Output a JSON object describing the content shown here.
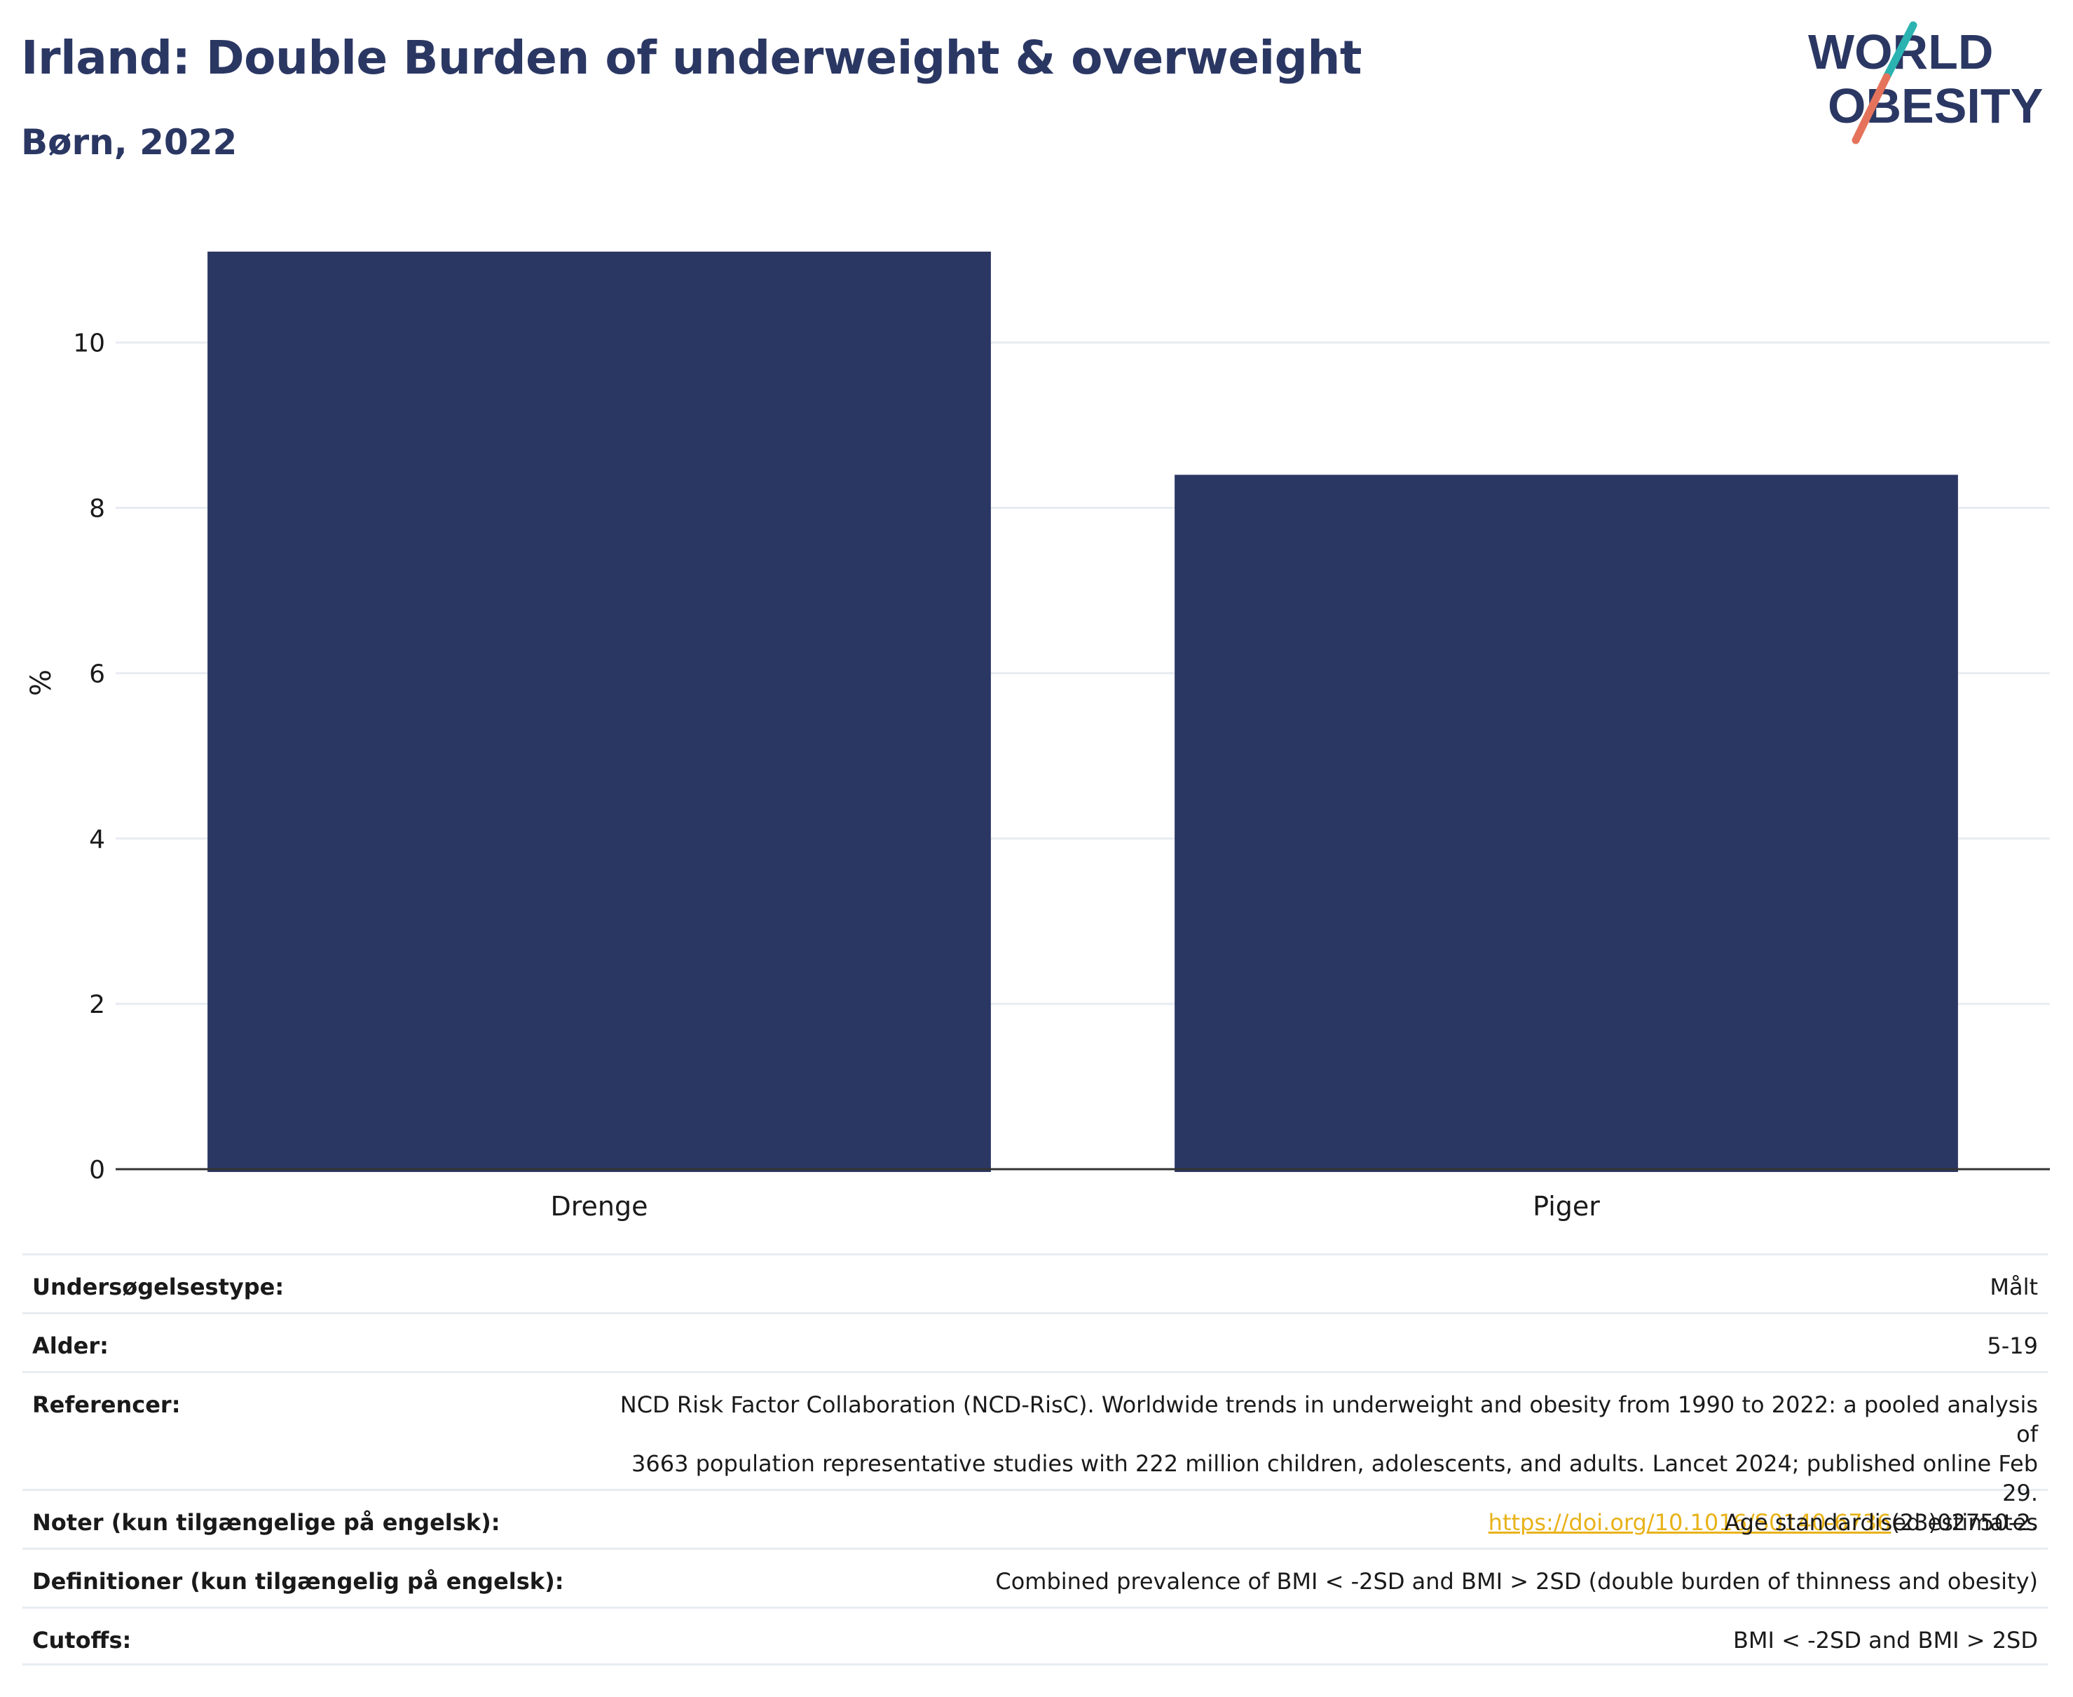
{
  "title": "Irland: Double Burden of underweight & overweight",
  "subtitle": "Børn, 2022",
  "logo": {
    "line1": "WORLD",
    "line2": "OBESITY",
    "colors": {
      "navy": "#2b3763",
      "teal": "#2ab3b1",
      "coral": "#e5735c"
    }
  },
  "colors": {
    "bar": "#2b3763",
    "grid": "#e8ecf2",
    "axis": "#333333",
    "link": "#e8b219"
  },
  "chart_data": {
    "type": "bar",
    "categories": [
      "Drenge",
      "Piger"
    ],
    "values": [
      11.1,
      8.4
    ],
    "title": "",
    "xlabel": "",
    "ylabel": "%",
    "ylim": [
      0,
      11.6
    ],
    "yticks": [
      0,
      2,
      4,
      6,
      8,
      10
    ],
    "grid": true,
    "legend": "none"
  },
  "meta": {
    "survey_type": {
      "label": "Undersøgelsestype:",
      "value": "Målt"
    },
    "age": {
      "label": "Alder:",
      "value": "5-19"
    },
    "references": {
      "label": "Referencer:",
      "line1": "NCD Risk Factor Collaboration (NCD-RisC). Worldwide trends in underweight and obesity from 1990 to 2022: a pooled analysis of",
      "line2": "3663 population representative studies with 222 million children, adolescents, and adults. Lancet 2024; published online Feb 29.",
      "link": "https://doi.org/10.1016/S0140-6736",
      "link_suffix": "(23)02750-2."
    },
    "notes": {
      "label": "Noter (kun tilgængelige på engelsk):",
      "value": "Age standardised estimates"
    },
    "definitions": {
      "label": "Definitioner (kun tilgængelig på engelsk):",
      "value": "Combined prevalence of BMI < -2SD and BMI > 2SD (double burden of thinness and obesity)"
    },
    "cutoffs": {
      "label": "Cutoffs:",
      "value": "BMI < -2SD and BMI > 2SD"
    }
  }
}
